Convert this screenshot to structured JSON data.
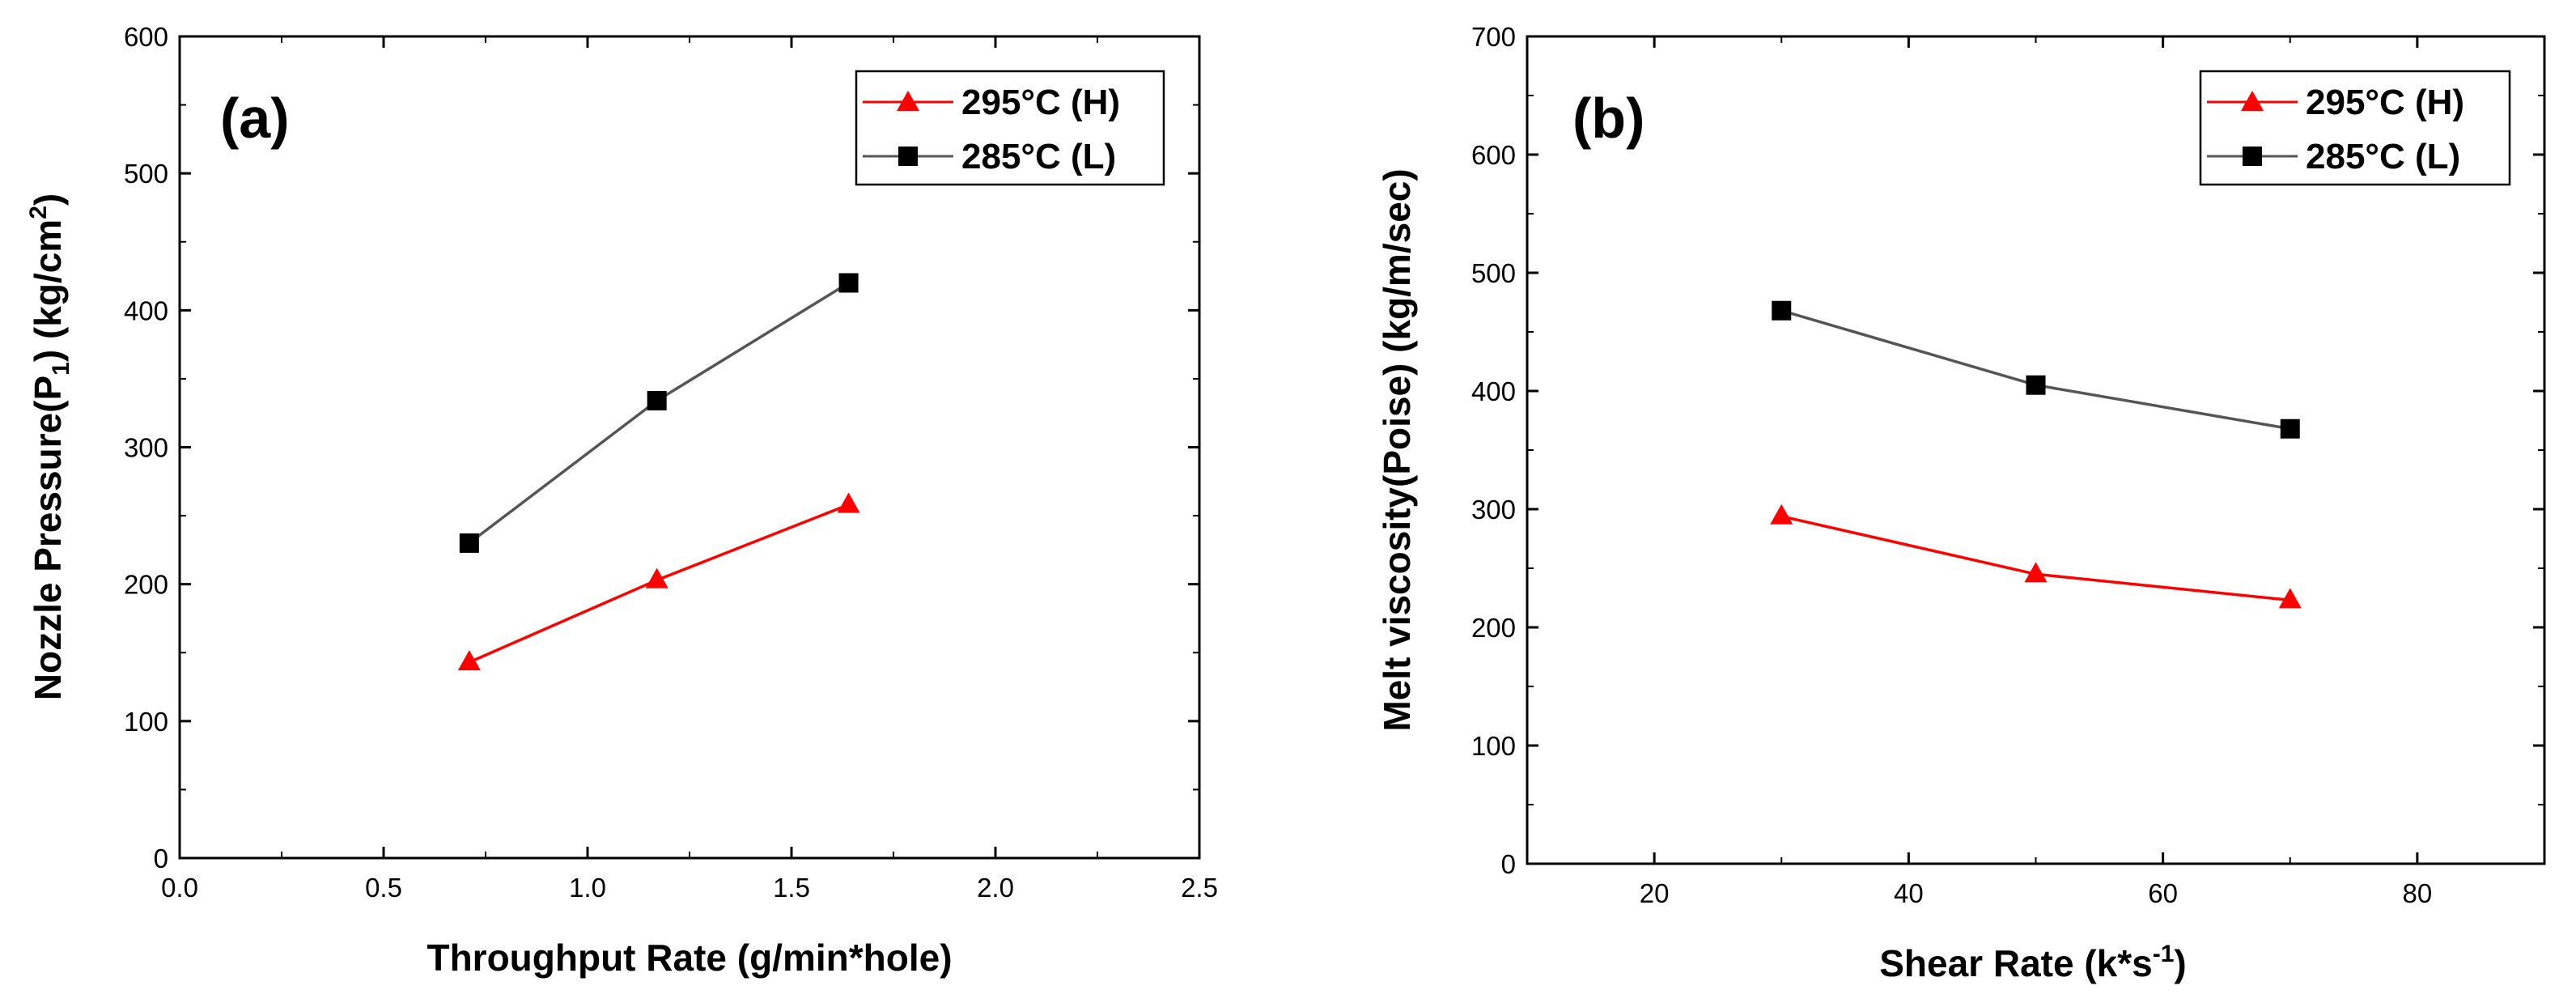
{
  "chart_data": [
    {
      "type": "line",
      "panel_label": "(a)",
      "xlabel": "Throughput Rate (g/min*hole)",
      "ylabel_main": "Nozzle Pressure(P",
      "ylabel_sub": "1",
      "ylabel_tail": ")  (kg/cm",
      "ylabel_sup": "2",
      "ylabel_end": ")",
      "xlim": [
        0.0,
        2.5
      ],
      "ylim": [
        0,
        600
      ],
      "xticks": [
        0.0,
        0.5,
        1.0,
        1.5,
        2.0,
        2.5
      ],
      "xtick_labels": [
        "0.0",
        "0.5",
        "1.0",
        "1.5",
        "2.0",
        "2.5"
      ],
      "yticks": [
        0,
        100,
        200,
        300,
        400,
        500,
        600
      ],
      "ytick_labels": [
        "0",
        "100",
        "200",
        "300",
        "400",
        "500",
        "600"
      ],
      "grid": false,
      "legend_position": "top-right",
      "series": [
        {
          "name": "295°C (H)",
          "color": "#ff0000",
          "marker": "triangle",
          "x": [
            0.71,
            1.17,
            1.64
          ],
          "y": [
            143,
            203,
            258
          ]
        },
        {
          "name": "285°C (L)",
          "color": "#000000",
          "line_color": "#555555",
          "marker": "square",
          "x": [
            0.71,
            1.17,
            1.64
          ],
          "y": [
            230,
            334,
            420
          ]
        }
      ]
    },
    {
      "type": "line",
      "panel_label": "(b)",
      "xlabel_main": "Shear Rate (k*s",
      "xlabel_sup": "-1",
      "xlabel_end": ")",
      "ylabel": "Melt viscosity(Poise) (kg/m/sec)",
      "xlim": [
        10,
        90
      ],
      "ylim": [
        0,
        700
      ],
      "xticks": [
        20,
        40,
        60,
        80
      ],
      "xtick_labels": [
        "20",
        "40",
        "60",
        "80"
      ],
      "yticks": [
        0,
        100,
        200,
        300,
        400,
        500,
        600,
        700
      ],
      "ytick_labels": [
        "0",
        "100",
        "200",
        "300",
        "400",
        "500",
        "600",
        "700"
      ],
      "grid": false,
      "legend_position": "top-right",
      "series": [
        {
          "name": "295°C (H)",
          "color": "#ff0000",
          "marker": "triangle",
          "x": [
            30,
            50,
            70
          ],
          "y": [
            294,
            245,
            223
          ]
        },
        {
          "name": "285°C (L)",
          "color": "#000000",
          "line_color": "#555555",
          "marker": "square",
          "x": [
            30,
            50,
            70
          ],
          "y": [
            468,
            405,
            368
          ]
        }
      ]
    }
  ]
}
